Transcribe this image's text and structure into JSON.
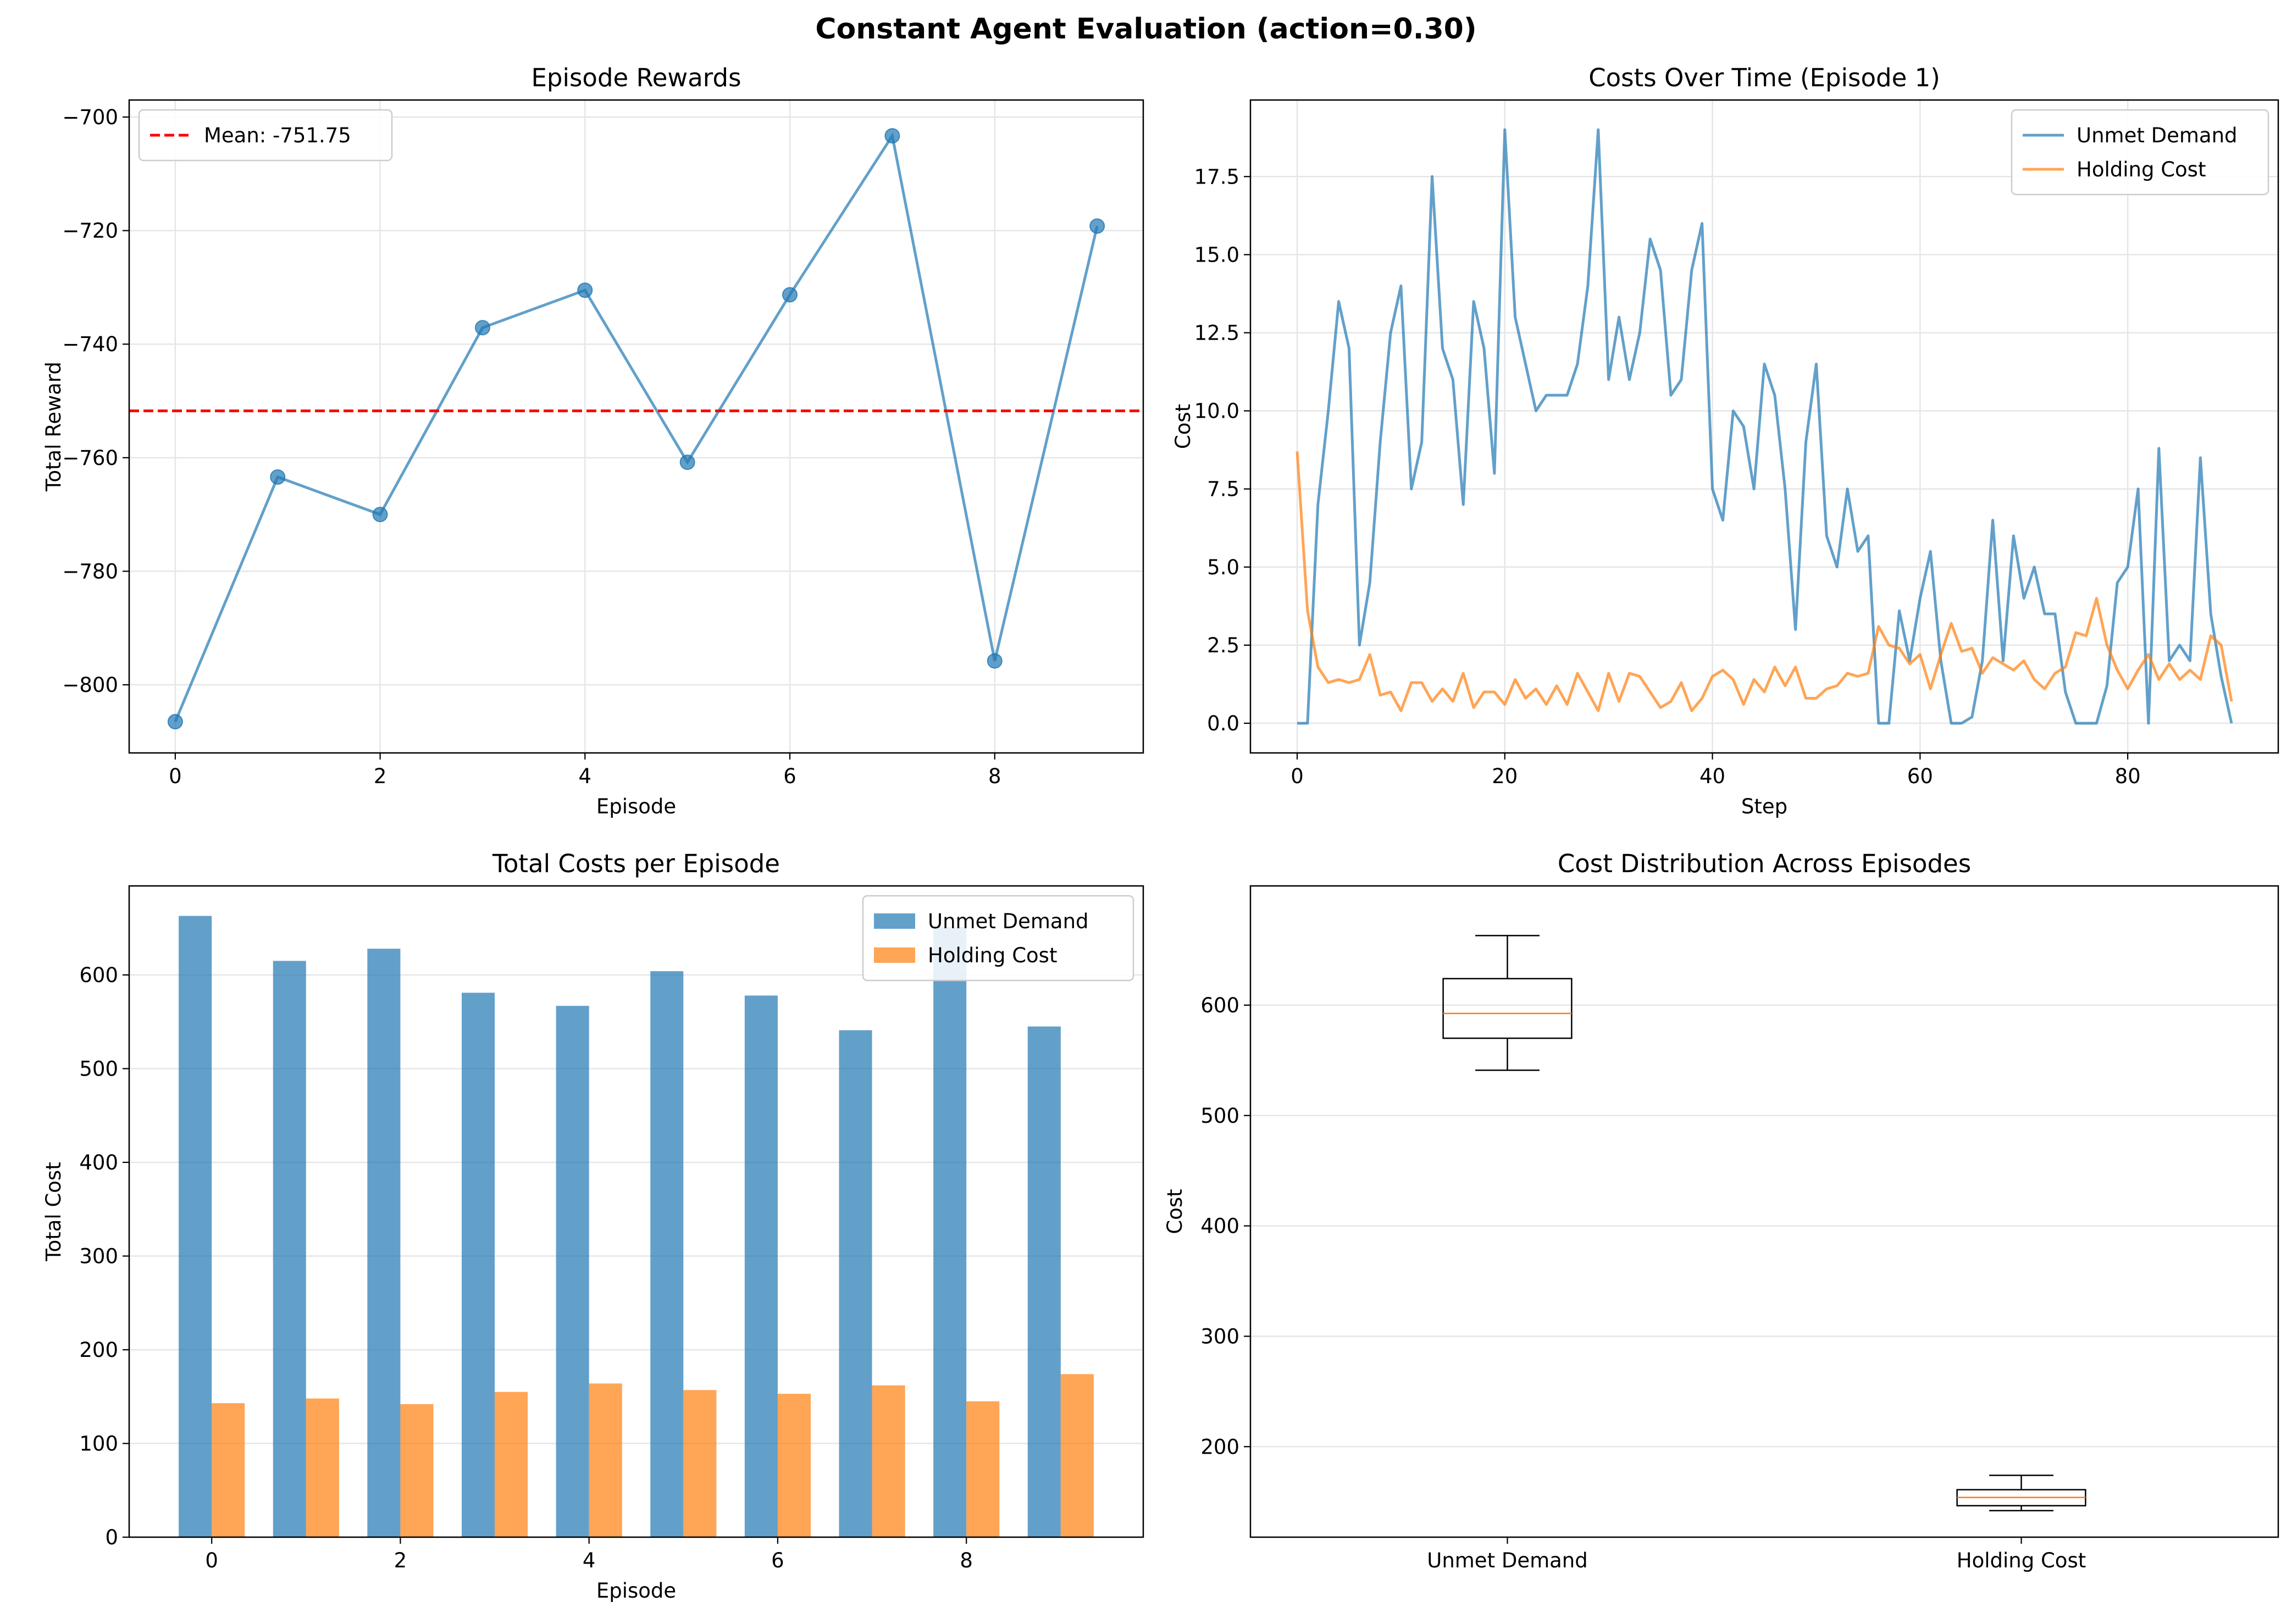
{
  "figure": {
    "suptitle": "Constant Agent Evaluation (action=0.30)",
    "colors": {
      "blue": "#1f77b4",
      "orange": "#ff7f0e",
      "red": "#ff0000",
      "median": "#ff7f0e",
      "grid": "#e6e6e6"
    }
  },
  "chart_data": [
    {
      "id": "rewards",
      "type": "line",
      "title": "Episode Rewards",
      "xlabel": "Episode",
      "ylabel": "Total Reward",
      "xlim": [
        -0.45,
        9.45
      ],
      "ylim": [
        -812,
        -697
      ],
      "xticks": [
        0,
        2,
        4,
        6,
        8
      ],
      "yticks": [
        -800,
        -780,
        -760,
        -740,
        -720,
        -700
      ],
      "ytick_labels": [
        "−800",
        "−780",
        "−760",
        "−740",
        "−720",
        "−700"
      ],
      "grid": true,
      "legend_position": "top-left",
      "series": [
        {
          "name": "",
          "x": [
            0,
            1,
            2,
            3,
            4,
            5,
            6,
            7,
            8,
            9
          ],
          "values": [
            -806.5,
            -763.4,
            -770.0,
            -737.1,
            -730.5,
            -760.8,
            -731.3,
            -703.3,
            -795.8,
            -719.2
          ]
        }
      ],
      "reference_line": {
        "label": "Mean: -751.75",
        "value": -751.75
      }
    },
    {
      "id": "costs_time",
      "type": "line",
      "title": "Costs Over Time (Episode 1)",
      "xlabel": "Step",
      "ylabel": "Cost",
      "xlim": [
        -4.5,
        94.5
      ],
      "ylim": [
        -0.95,
        19.95
      ],
      "xticks": [
        0,
        20,
        40,
        60,
        80
      ],
      "yticks": [
        0.0,
        2.5,
        5.0,
        7.5,
        10.0,
        12.5,
        15.0,
        17.5
      ],
      "ytick_labels": [
        "0.0",
        "2.5",
        "5.0",
        "7.5",
        "10.0",
        "12.5",
        "15.0",
        "17.5"
      ],
      "grid": true,
      "legend_position": "top-right",
      "series": [
        {
          "name": "Unmet Demand",
          "values": [
            0,
            0,
            7,
            10,
            13.5,
            12,
            2.5,
            4.5,
            9,
            12.5,
            14,
            7.5,
            9,
            17.5,
            12,
            11,
            7,
            13.5,
            12,
            8,
            19,
            13,
            11.5,
            10,
            10.5,
            10.5,
            10.5,
            11.5,
            14,
            19,
            11,
            13,
            11,
            12.5,
            15.5,
            14.5,
            10.5,
            11,
            14.5,
            16,
            7.5,
            6.5,
            10,
            9.5,
            7.5,
            11.5,
            10.5,
            7.5,
            3,
            9,
            11.5,
            6,
            5,
            7.5,
            5.5,
            6,
            0,
            0,
            3.6,
            2,
            4,
            5.5,
            2,
            0,
            0,
            0.2,
            2,
            6.5,
            2,
            6,
            4,
            5,
            3.5,
            3.5,
            1,
            0,
            0,
            0,
            1.2,
            4.5,
            5,
            7.5,
            0,
            8.8,
            2,
            2.5,
            2,
            8.5,
            3.5,
            1.5,
            0
          ]
        },
        {
          "name": "Holding Cost",
          "values": [
            8.7,
            3.6,
            1.8,
            1.3,
            1.4,
            1.3,
            1.4,
            2.2,
            0.9,
            1.0,
            0.4,
            1.3,
            1.3,
            0.7,
            1.1,
            0.7,
            1.6,
            0.5,
            1.0,
            1.0,
            0.6,
            1.4,
            0.8,
            1.1,
            0.6,
            1.2,
            0.6,
            1.6,
            1.0,
            0.4,
            1.6,
            0.7,
            1.6,
            1.5,
            1.0,
            0.5,
            0.7,
            1.3,
            0.4,
            0.8,
            1.5,
            1.7,
            1.4,
            0.6,
            1.4,
            1.0,
            1.8,
            1.2,
            1.8,
            0.8,
            0.8,
            1.1,
            1.2,
            1.6,
            1.5,
            1.6,
            3.1,
            2.5,
            2.4,
            1.9,
            2.2,
            1.1,
            2.2,
            3.2,
            2.3,
            2.4,
            1.6,
            2.1,
            1.9,
            1.7,
            2.0,
            1.4,
            1.1,
            1.6,
            1.8,
            2.9,
            2.8,
            4.0,
            2.5,
            1.7,
            1.1,
            1.7,
            2.2,
            1.4,
            1.9,
            1.4,
            1.7,
            1.4,
            2.8,
            2.5,
            0.7
          ]
        }
      ]
    },
    {
      "id": "total_costs",
      "type": "bar",
      "title": "Total Costs per Episode",
      "xlabel": "Episode",
      "ylabel": "Total Cost",
      "xlim": [
        -0.875,
        9.875
      ],
      "ylim": [
        0,
        695
      ],
      "xticks": [
        0,
        2,
        4,
        6,
        8
      ],
      "yticks": [
        0,
        100,
        200,
        300,
        400,
        500,
        600
      ],
      "ytick_labels": [
        "0",
        "100",
        "200",
        "300",
        "400",
        "500",
        "600"
      ],
      "grid": true,
      "legend_position": "top-right",
      "categories": [
        "0",
        "1",
        "2",
        "3",
        "4",
        "5",
        "6",
        "7",
        "8",
        "9"
      ],
      "bar_width": 0.35,
      "series": [
        {
          "name": "Unmet Demand",
          "values": [
            663,
            615,
            628,
            581,
            567,
            604,
            578,
            541,
            651,
            545
          ]
        },
        {
          "name": "Holding Cost",
          "values": [
            143,
            148,
            142,
            155,
            164,
            157,
            153,
            162,
            145,
            174
          ]
        }
      ]
    },
    {
      "id": "distribution",
      "type": "box",
      "title": "Cost Distribution Across Episodes",
      "xlabel": "",
      "ylabel": "Cost",
      "xlim": [
        0.5,
        2.5
      ],
      "ylim": [
        118,
        708
      ],
      "yticks": [
        200,
        300,
        400,
        500,
        600
      ],
      "ytick_labels": [
        "200",
        "300",
        "400",
        "500",
        "600"
      ],
      "grid": true,
      "categories": [
        "Unmet Demand",
        "Holding Cost"
      ],
      "boxes": [
        {
          "name": "Unmet Demand",
          "min": 541,
          "q1": 570,
          "median": 592.5,
          "q3": 624,
          "max": 663
        },
        {
          "name": "Holding Cost",
          "min": 142,
          "q1": 146.5,
          "median": 154,
          "q3": 161,
          "max": 174
        }
      ]
    }
  ]
}
